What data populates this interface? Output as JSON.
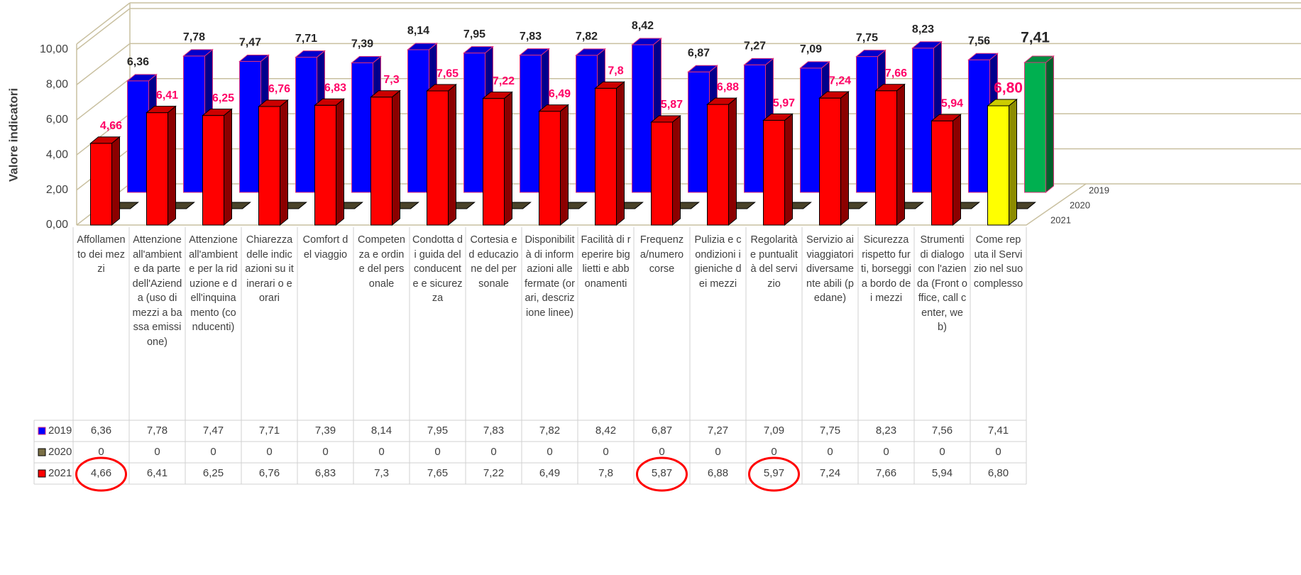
{
  "chart_data": {
    "type": "bar3d",
    "y_axis_label": "Valore indicatori",
    "categories": [
      "Affollamento dei mezzi",
      "Attenzione all'ambiente da parte dell'Azienda (uso di mezzi a bassa emissione)",
      "Attenzione all'ambiente per la riduzione e dell'inquinamento (conducenti)",
      "Chiarezza delle indicazioni su itinerari o e orari",
      "Comfort del viaggio",
      "Competenza e ordine del personale",
      "Condotta di guida del conducente e sicurezza",
      "Cortesia ed educazione del personale",
      "Disponibilità di informazioni alle fermate (orari, descrizione linee)",
      "Facilità di reperire biglietti e abbonamenti",
      "Frequenza/numero corse",
      "Pulizia e condizioni igieniche dei mezzi",
      "Regolarità e puntualità del servizio",
      "Servizio ai viaggiatori diversamente abili (pedane)",
      "Sicurezza rispetto furti, borseggi a bordo dei mezzi",
      "Strumenti di dialogo con l'azienda (Front office, call center, web)",
      "Come reputa il Servizio nel suo complesso"
    ],
    "series": [
      {
        "name": "2019",
        "color": "#0000ff",
        "highlight_color": "#00b050",
        "values": [
          6.36,
          7.78,
          7.47,
          7.71,
          7.39,
          8.14,
          7.95,
          7.83,
          7.82,
          8.42,
          6.87,
          7.27,
          7.09,
          7.75,
          8.23,
          7.56,
          7.41
        ],
        "value_labels": [
          "6,36",
          "7,78",
          "7,47",
          "7,71",
          "7,39",
          "8,14",
          "7,95",
          "7,83",
          "7,82",
          "8,42",
          "6,87",
          "7,27",
          "7,09",
          "7,75",
          "8,23",
          "7,56",
          "7,41"
        ]
      },
      {
        "name": "2020",
        "color": "#7a6f45",
        "values": [
          0,
          0,
          0,
          0,
          0,
          0,
          0,
          0,
          0,
          0,
          0,
          0,
          0,
          0,
          0,
          0,
          0
        ]
      },
      {
        "name": "2021",
        "color": "#ff0000",
        "highlight_color": "#ffff00",
        "values": [
          4.66,
          6.41,
          6.25,
          6.76,
          6.83,
          7.3,
          7.65,
          7.22,
          6.49,
          7.8,
          5.87,
          6.88,
          5.97,
          7.24,
          7.66,
          5.94,
          6.8
        ],
        "value_labels": [
          "4,66",
          "6,41",
          "6,25",
          "6,76",
          "6,83",
          "7,3",
          "7,65",
          "7,22",
          "6,49",
          "7,8",
          "5,87",
          "6,88",
          "5,97",
          "7,24",
          "7,66",
          "5,94",
          "6,80"
        ]
      }
    ],
    "ylim": [
      0,
      10
    ],
    "yticks": [
      {
        "value": 0,
        "label": "0,00"
      },
      {
        "value": 2,
        "label": "2,00"
      },
      {
        "value": 4,
        "label": "4,00"
      },
      {
        "value": 6,
        "label": "6,00"
      },
      {
        "value": 8,
        "label": "8,00"
      },
      {
        "value": 10,
        "label": "10,00"
      }
    ],
    "grid": true,
    "data_table": true
  }
}
